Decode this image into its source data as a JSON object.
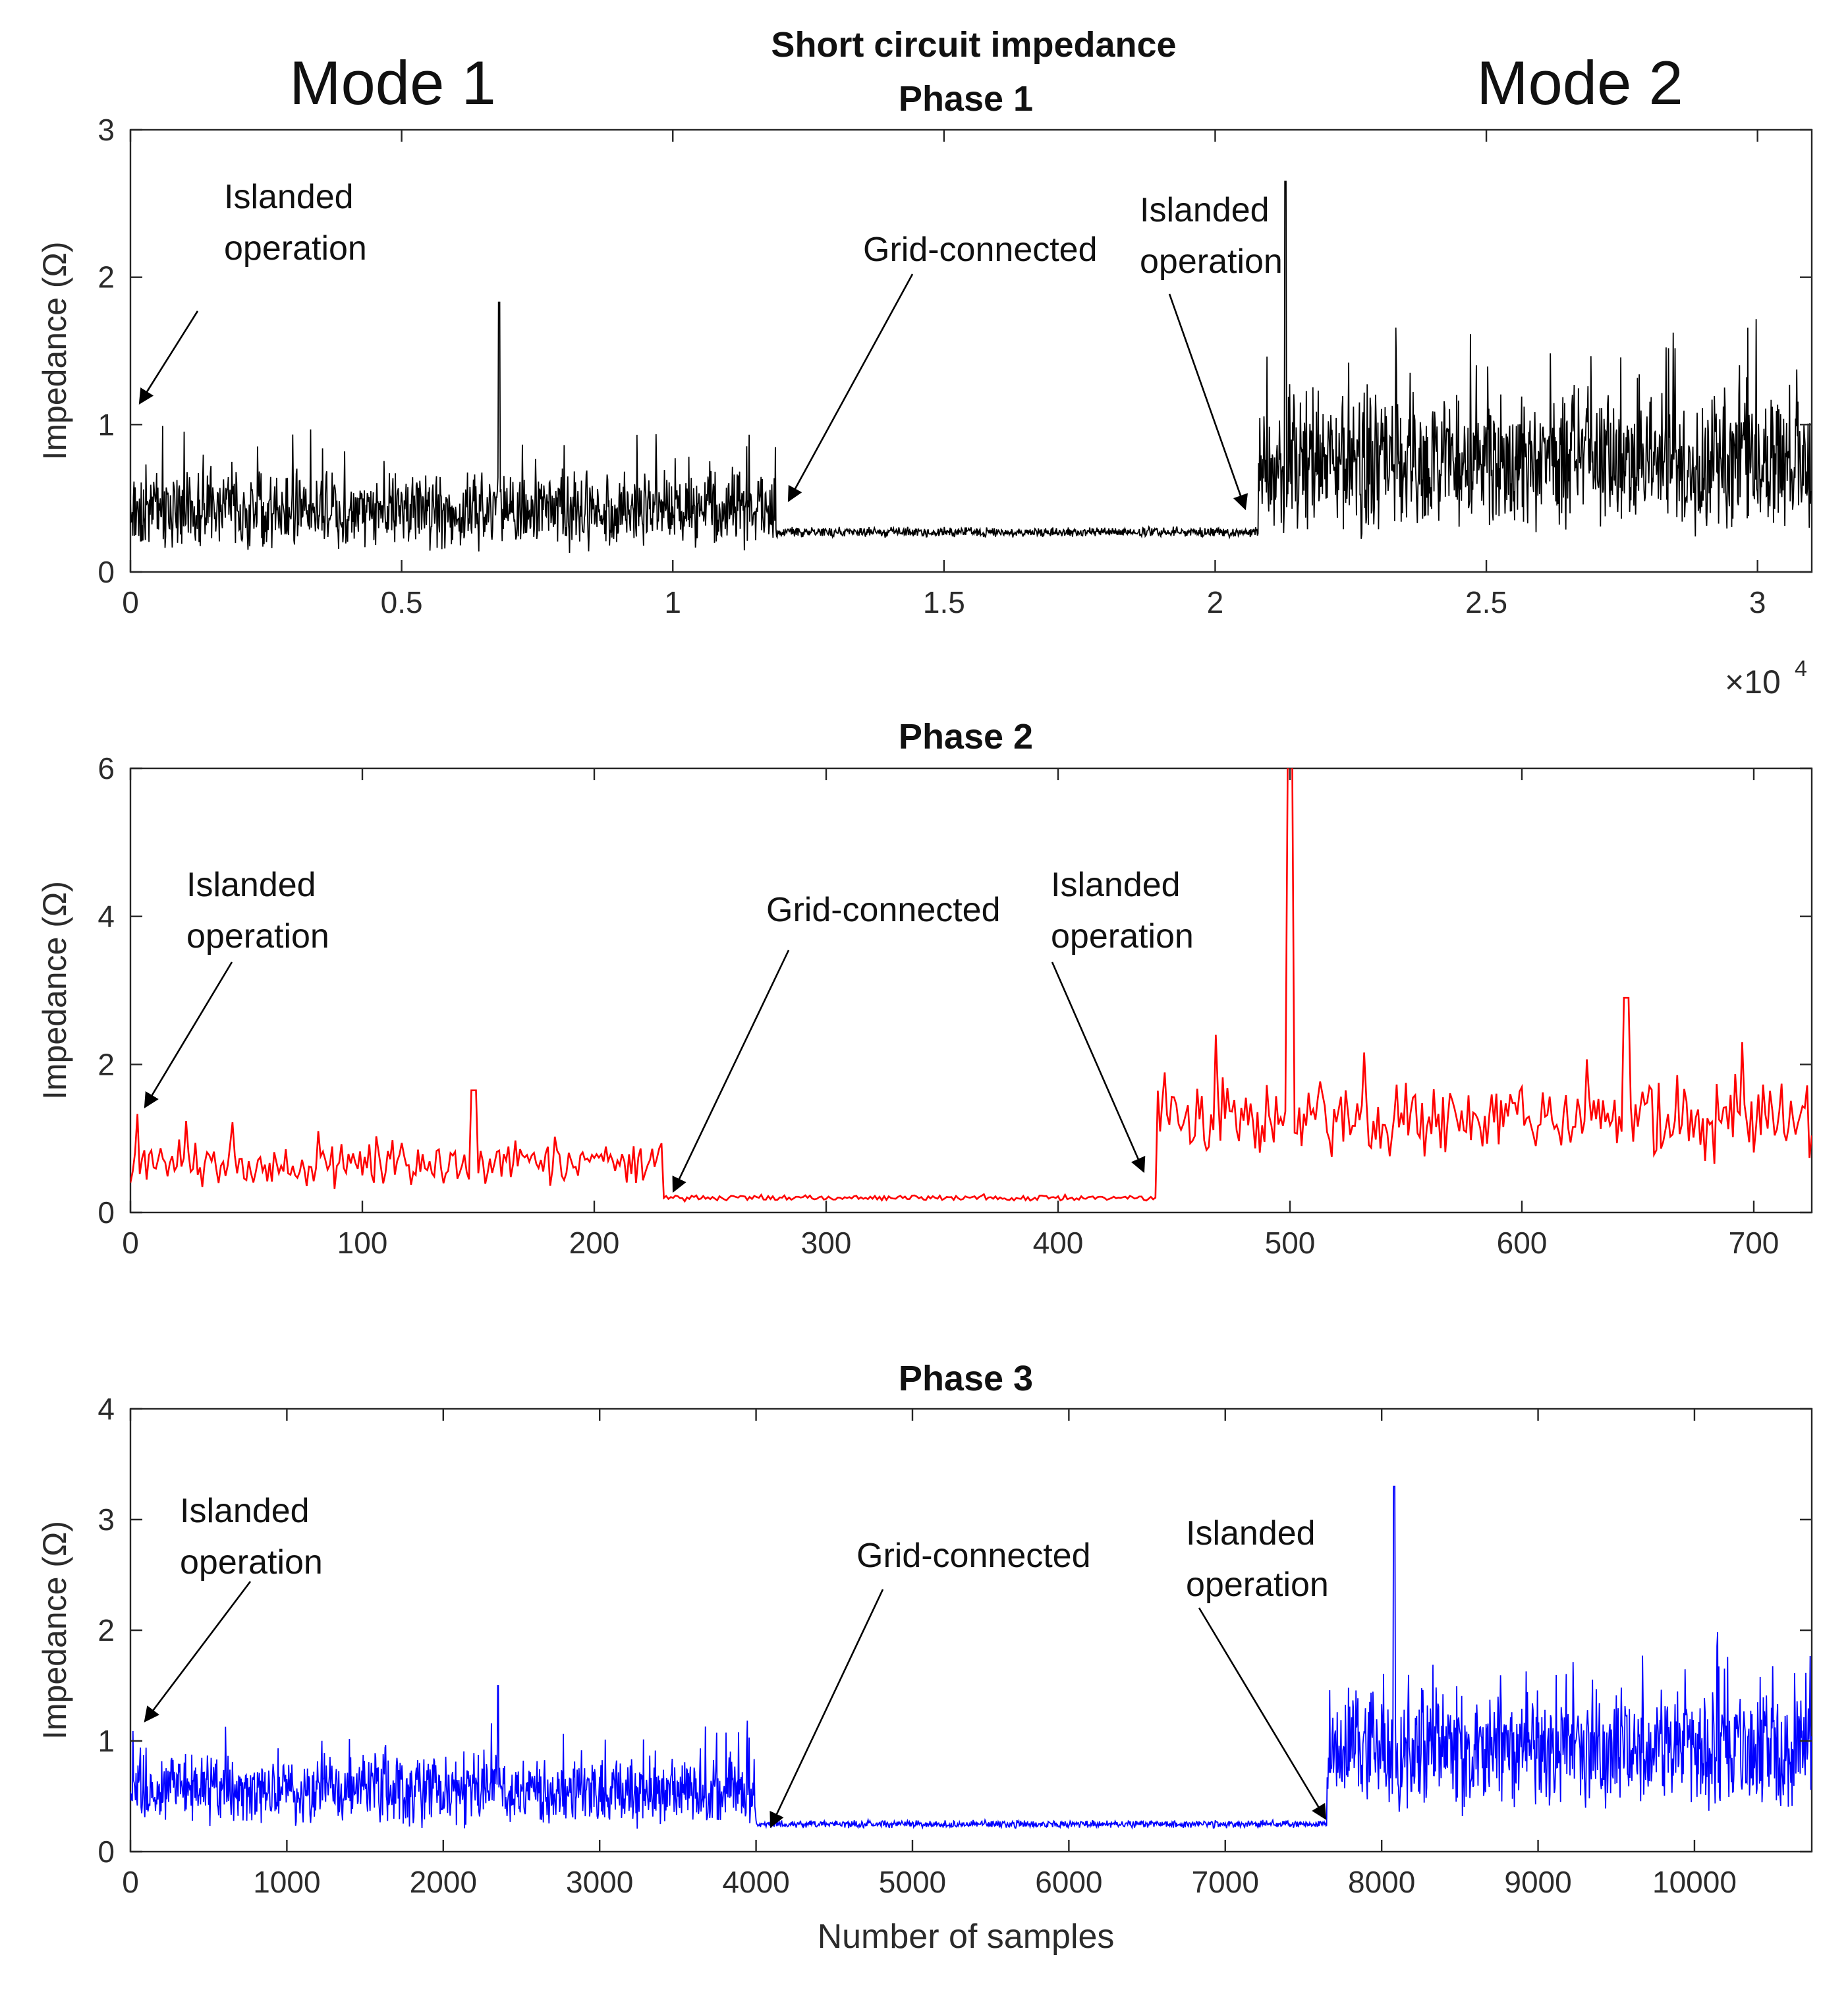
{
  "figure": {
    "title": "Short circuit impedance",
    "mode_labels": [
      "Mode 1",
      "Mode 2"
    ],
    "x_axis_label": "Number of samples",
    "x_exponent": {
      "base": "×10",
      "power": "4"
    }
  },
  "chart_data": [
    {
      "type": "line",
      "title": "Phase 1",
      "ylabel": "Impedance (Ω)",
      "xlabel": "",
      "color": "#000000",
      "xlim": [
        0,
        31000
      ],
      "ylim": [
        0,
        3
      ],
      "xticks": [
        0,
        5000,
        10000,
        15000,
        20000,
        25000,
        30000
      ],
      "xtick_labels": [
        "0",
        "0.5",
        "1",
        "1.5",
        "2",
        "2.5",
        "3"
      ],
      "yticks": [
        0,
        1,
        2,
        3
      ],
      "ytick_labels": [
        "0",
        "1",
        "2",
        "3"
      ],
      "n_samples": 31000,
      "segments": [
        {
          "label": "Islanded operation",
          "x_start": 0,
          "x_end": 11900,
          "mean": 0.42,
          "spread": 0.3
        },
        {
          "label": "Grid-connected",
          "x_start": 11900,
          "x_end": 20800,
          "mean": 0.27,
          "spread": 0.04
        },
        {
          "label": "Islanded operation",
          "x_start": 20800,
          "x_end": 31000,
          "mean": 0.75,
          "spread": 0.55
        }
      ],
      "peaks": [
        {
          "x": 6800,
          "y": 1.83
        },
        {
          "x": 21300,
          "y": 2.65
        }
      ],
      "annotations": [
        {
          "text": "Islanded operation",
          "x": 0,
          "y": 1.1
        },
        {
          "text": "Grid-connected",
          "x": 12000,
          "y": 0.3
        },
        {
          "text": "Islanded operation",
          "x": 20500,
          "y": 0.28
        }
      ]
    },
    {
      "type": "line",
      "title": "Phase 2",
      "ylabel": "Impedance (Ω)",
      "xlabel": "",
      "color": "#ff0000",
      "xlim": [
        0,
        725
      ],
      "ylim": [
        0,
        6
      ],
      "xticks": [
        0,
        100,
        200,
        300,
        400,
        500,
        600,
        700
      ],
      "xtick_labels": [
        "0",
        "100",
        "200",
        "300",
        "400",
        "500",
        "600",
        "700"
      ],
      "yticks": [
        0,
        2,
        4,
        6
      ],
      "ytick_labels": [
        "0",
        "2",
        "4",
        "6"
      ],
      "n_samples": 725,
      "segments": [
        {
          "label": "Islanded operation",
          "x_start": 0,
          "x_end": 230,
          "mean": 0.65,
          "spread": 0.35
        },
        {
          "label": "Grid-connected",
          "x_start": 230,
          "x_end": 443,
          "mean": 0.2,
          "spread": 0.05
        },
        {
          "label": "Islanded operation",
          "x_start": 443,
          "x_end": 725,
          "mean": 1.25,
          "spread": 0.6
        }
      ],
      "peaks": [
        {
          "x": 500,
          "y": 6.0
        },
        {
          "x": 645,
          "y": 2.9
        },
        {
          "x": 148,
          "y": 1.65
        }
      ],
      "annotations": [
        {
          "text": "Islanded operation",
          "x": 5,
          "y": 1.4
        },
        {
          "text": "Grid-connected",
          "x": 235,
          "y": 0.35
        },
        {
          "text": "Islanded operation",
          "x": 440,
          "y": 0.5
        }
      ]
    },
    {
      "type": "line",
      "title": "Phase 3",
      "ylabel": "Impedance (Ω)",
      "xlabel": "Number of samples",
      "color": "#0000ff",
      "xlim": [
        0,
        10750
      ],
      "ylim": [
        0,
        4
      ],
      "xticks": [
        0,
        1000,
        2000,
        3000,
        4000,
        5000,
        6000,
        7000,
        8000,
        9000,
        10000
      ],
      "xtick_labels": [
        "0",
        "1000",
        "2000",
        "3000",
        "4000",
        "5000",
        "6000",
        "7000",
        "8000",
        "9000",
        "10000"
      ],
      "yticks": [
        0,
        1,
        2,
        3,
        4
      ],
      "ytick_labels": [
        "0",
        "1",
        "2",
        "3",
        "4"
      ],
      "n_samples": 10750,
      "segments": [
        {
          "label": "Islanded operation",
          "x_start": 0,
          "x_end": 4000,
          "mean": 0.55,
          "spread": 0.35
        },
        {
          "label": "Grid-connected",
          "x_start": 4000,
          "x_end": 7650,
          "mean": 0.25,
          "spread": 0.04
        },
        {
          "label": "Islanded operation",
          "x_start": 7650,
          "x_end": 10750,
          "mean": 0.9,
          "spread": 0.6
        }
      ],
      "peaks": [
        {
          "x": 8080,
          "y": 3.3
        },
        {
          "x": 2350,
          "y": 1.5
        }
      ],
      "annotations": [
        {
          "text": "Islanded operation",
          "x": 80,
          "y": 1.15
        },
        {
          "text": "Grid-connected",
          "x": 4030,
          "y": 0.22
        },
        {
          "text": "Islanded operation",
          "x": 7600,
          "y": 0.28
        }
      ]
    }
  ]
}
